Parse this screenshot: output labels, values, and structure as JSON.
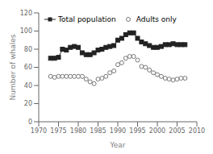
{
  "chart_data": {
    "type": "line",
    "x": [
      1973,
      1974,
      1975,
      1976,
      1977,
      1978,
      1979,
      1980,
      1981,
      1982,
      1983,
      1984,
      1985,
      1986,
      1987,
      1988,
      1989,
      1990,
      1991,
      1992,
      1993,
      1994,
      1995,
      1996,
      1997,
      1998,
      1999,
      2000,
      2001,
      2002,
      2003,
      2004,
      2005,
      2006,
      2007
    ],
    "series": [
      {
        "name": "Total population",
        "color": "#222222",
        "marker": "square",
        "line_style": "solid",
        "values": [
          70,
          70,
          71,
          80,
          79,
          82,
          83,
          82,
          76,
          74,
          74,
          76,
          79,
          80,
          82,
          83,
          84,
          90,
          92,
          96,
          98,
          98,
          92,
          88,
          86,
          84,
          82,
          82,
          83,
          85,
          85,
          86,
          85,
          85,
          85
        ]
      },
      {
        "name": "Adults only",
        "color": "#777777",
        "marker": "circle",
        "line_style": "none",
        "values": [
          50,
          49,
          50,
          50,
          50,
          50,
          50,
          50,
          50,
          47,
          44,
          42,
          47,
          48,
          50,
          54,
          56,
          63,
          65,
          70,
          72,
          72,
          68,
          61,
          60,
          57,
          54,
          52,
          50,
          48,
          47,
          46,
          47,
          48,
          48
        ]
      }
    ],
    "xlabel": "Year",
    "ylabel": "Number of whales",
    "xlim": [
      1970,
      2010
    ],
    "ylim": [
      0,
      120
    ],
    "xticks": [
      1970,
      1975,
      1980,
      1985,
      1990,
      1995,
      2000,
      2005,
      2010
    ],
    "yticks": [
      0,
      20,
      40,
      60,
      80,
      100,
      120
    ],
    "grid": false,
    "legend": "upper left"
  }
}
